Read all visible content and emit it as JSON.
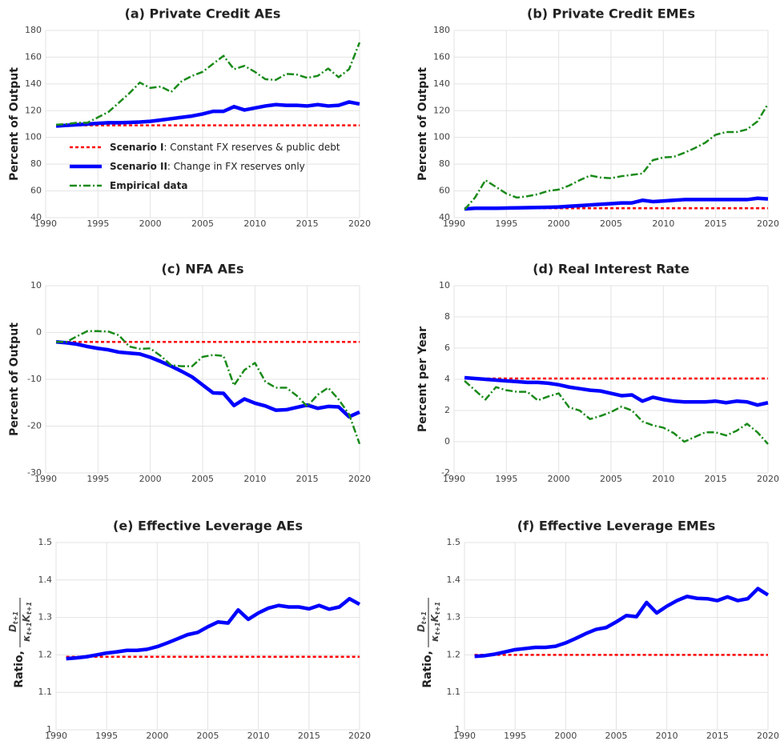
{
  "chart_data": [
    {
      "type": "line",
      "title": "(a) Private Credit AEs",
      "ylabel": "Percent of Output",
      "xlim": [
        1990,
        2020
      ],
      "xticks": [
        1990,
        1995,
        2000,
        2005,
        2010,
        2015,
        2020
      ],
      "ylim": [
        40,
        180
      ],
      "yticks": [
        40,
        60,
        80,
        100,
        120,
        140,
        160,
        180
      ],
      "grid": true,
      "legend": "lower left",
      "x": [
        1991,
        1992,
        1993,
        1994,
        1995,
        1996,
        1997,
        1998,
        1999,
        2000,
        2001,
        2002,
        2003,
        2004,
        2005,
        2006,
        2007,
        2008,
        2009,
        2010,
        2011,
        2012,
        2013,
        2014,
        2015,
        2016,
        2017,
        2018,
        2019,
        2020
      ],
      "series": [
        {
          "name": "Scenario I",
          "name_suffix": ": Constant FX reserves & public debt",
          "color": "#ff0000",
          "line_style": "dashed",
          "values": [
            109,
            109,
            109,
            109,
            109,
            109,
            109,
            109,
            109,
            109,
            109,
            109,
            109,
            109,
            109,
            109,
            109,
            109,
            109,
            109,
            109,
            109,
            109,
            109,
            109,
            109,
            109,
            109,
            109,
            109
          ]
        },
        {
          "name": "Scenario II",
          "name_suffix": ": Change in FX reserves only",
          "color": "#0000ff",
          "line_style": "solid",
          "values": [
            108.5,
            109,
            109.5,
            110,
            110.5,
            111,
            111,
            111.2,
            111.5,
            112,
            113,
            114,
            115,
            116,
            117.5,
            119.5,
            119.5,
            123,
            120.5,
            122,
            123.5,
            124.5,
            124,
            124,
            123.5,
            124.5,
            123.5,
            124,
            126.5,
            125
          ]
        },
        {
          "name": "Empirical data",
          "color": "#1a8a1a",
          "line_style": "dashdot",
          "values": [
            109.5,
            110,
            111,
            111,
            115,
            119,
            126,
            133,
            141,
            137,
            138,
            134,
            142,
            146,
            149,
            155,
            161,
            151,
            153.5,
            149,
            143.5,
            143,
            147.5,
            147,
            144.5,
            146,
            151.5,
            145,
            151,
            171
          ]
        }
      ]
    },
    {
      "type": "line",
      "title": "(b) Private Credit EMEs",
      "ylabel": "Percent of Output",
      "xlim": [
        1990,
        2020
      ],
      "xticks": [
        1990,
        1995,
        2000,
        2005,
        2010,
        2015,
        2020
      ],
      "ylim": [
        40,
        180
      ],
      "yticks": [
        40,
        60,
        80,
        100,
        120,
        140,
        160,
        180
      ],
      "grid": true,
      "x": [
        1991,
        1992,
        1993,
        1994,
        1995,
        1996,
        1997,
        1998,
        1999,
        2000,
        2001,
        2002,
        2003,
        2004,
        2005,
        2006,
        2007,
        2008,
        2009,
        2010,
        2011,
        2012,
        2013,
        2014,
        2015,
        2016,
        2017,
        2018,
        2019,
        2020
      ],
      "series": [
        {
          "color": "#ff0000",
          "line_style": "dashed",
          "values": [
            47,
            47,
            47,
            47,
            47,
            47,
            47,
            47,
            47,
            47,
            47,
            47,
            47,
            47,
            47,
            47,
            47,
            47,
            47,
            47,
            47,
            47,
            47,
            47,
            47,
            47,
            47,
            47,
            47,
            47
          ]
        },
        {
          "color": "#0000ff",
          "line_style": "solid",
          "values": [
            46.5,
            47,
            47,
            47,
            47.2,
            47.3,
            47.5,
            47.6,
            47.8,
            48,
            48.5,
            49,
            49.5,
            50,
            50.5,
            51,
            51,
            53,
            52,
            52.5,
            53,
            53.5,
            53.5,
            53.5,
            53.5,
            53.5,
            53.5,
            53.5,
            54.5,
            54
          ]
        },
        {
          "color": "#1a8a1a",
          "line_style": "dashdot",
          "values": [
            46,
            55,
            68,
            63,
            58,
            55,
            56,
            57.5,
            60,
            61,
            64,
            68,
            71.5,
            70,
            69.5,
            71,
            72,
            73,
            83,
            85,
            85.5,
            88.5,
            92,
            96,
            102,
            104,
            104,
            106,
            112,
            125
          ]
        }
      ]
    },
    {
      "type": "line",
      "title": "(c) NFA AEs",
      "ylabel": "Percent of Output",
      "xlim": [
        1990,
        2020
      ],
      "xticks": [
        1990,
        1995,
        2000,
        2005,
        2010,
        2015,
        2020
      ],
      "ylim": [
        -30,
        10
      ],
      "yticks": [
        -30,
        -20,
        -10,
        0,
        10
      ],
      "grid": true,
      "x": [
        1991,
        1992,
        1993,
        1994,
        1995,
        1996,
        1997,
        1998,
        1999,
        2000,
        2001,
        2002,
        2003,
        2004,
        2005,
        2006,
        2007,
        2008,
        2009,
        2010,
        2011,
        2012,
        2013,
        2014,
        2015,
        2016,
        2017,
        2018,
        2019,
        2020
      ],
      "series": [
        {
          "color": "#ff0000",
          "line_style": "dashed",
          "values": [
            -2,
            -2,
            -2,
            -2,
            -2,
            -2,
            -2,
            -2,
            -2,
            -2,
            -2,
            -2,
            -2,
            -2,
            -2,
            -2,
            -2,
            -2,
            -2,
            -2,
            -2,
            -2,
            -2,
            -2,
            -2,
            -2,
            -2,
            -2,
            -2,
            -2
          ]
        },
        {
          "color": "#0000ff",
          "line_style": "solid",
          "values": [
            -2,
            -2.2,
            -2.5,
            -3,
            -3.4,
            -3.7,
            -4.2,
            -4.4,
            -4.6,
            -5.3,
            -6.2,
            -7.2,
            -8.3,
            -9.5,
            -11.2,
            -12.9,
            -13,
            -15.6,
            -14.2,
            -15.1,
            -15.7,
            -16.6,
            -16.5,
            -16,
            -15.5,
            -16.2,
            -15.8,
            -15.9,
            -18,
            -17
          ]
        },
        {
          "color": "#1a8a1a",
          "line_style": "dashdot",
          "values": [
            -2,
            -2,
            -0.8,
            0.3,
            0.3,
            0.2,
            -0.6,
            -3,
            -3.5,
            -3.4,
            -5,
            -7,
            -7.2,
            -7.2,
            -5.2,
            -4.8,
            -5,
            -11.3,
            -8,
            -6.5,
            -10.5,
            -11.8,
            -11.8,
            -13.5,
            -15.8,
            -13.3,
            -11.8,
            -14.3,
            -17.5,
            -23.8
          ]
        }
      ]
    },
    {
      "type": "line",
      "title": "(d) Real Interest Rate",
      "ylabel": "Percent per Year",
      "xlim": [
        1990,
        2020
      ],
      "xticks": [
        1990,
        1995,
        2000,
        2005,
        2010,
        2015,
        2020
      ],
      "ylim": [
        -2,
        10
      ],
      "yticks": [
        -2,
        0,
        2,
        4,
        6,
        8,
        10
      ],
      "grid": true,
      "x": [
        1991,
        1992,
        1993,
        1994,
        1995,
        1996,
        1997,
        1998,
        1999,
        2000,
        2001,
        2002,
        2003,
        2004,
        2005,
        2006,
        2007,
        2008,
        2009,
        2010,
        2011,
        2012,
        2013,
        2014,
        2015,
        2016,
        2017,
        2018,
        2019,
        2020
      ],
      "series": [
        {
          "color": "#ff0000",
          "line_style": "dashed",
          "values": [
            4.05,
            4.05,
            4.05,
            4.05,
            4.05,
            4.05,
            4.05,
            4.05,
            4.05,
            4.05,
            4.05,
            4.05,
            4.05,
            4.05,
            4.05,
            4.05,
            4.05,
            4.05,
            4.05,
            4.05,
            4.05,
            4.05,
            4.05,
            4.05,
            4.05,
            4.05,
            4.05,
            4.05,
            4.05,
            4.05
          ]
        },
        {
          "color": "#0000ff",
          "line_style": "solid",
          "values": [
            4.1,
            4.05,
            4.0,
            3.95,
            3.9,
            3.85,
            3.8,
            3.8,
            3.75,
            3.65,
            3.5,
            3.4,
            3.3,
            3.25,
            3.1,
            2.95,
            3.0,
            2.6,
            2.85,
            2.7,
            2.6,
            2.55,
            2.55,
            2.55,
            2.6,
            2.5,
            2.6,
            2.55,
            2.35,
            2.5
          ]
        },
        {
          "color": "#1a8a1a",
          "line_style": "dashdot",
          "values": [
            3.9,
            3.3,
            2.7,
            3.5,
            3.3,
            3.2,
            3.2,
            2.65,
            2.9,
            3.1,
            2.2,
            2.0,
            1.45,
            1.65,
            1.9,
            2.25,
            2.0,
            1.3,
            1.05,
            0.9,
            0.55,
            0.0,
            0.3,
            0.6,
            0.6,
            0.4,
            0.7,
            1.15,
            0.6,
            -0.15
          ]
        }
      ]
    },
    {
      "type": "line",
      "title": "(e) Effective Leverage AEs",
      "ylabel": "Ratio,",
      "ylabel_fraction": {
        "numerator": [
          "D",
          "t+1"
        ],
        "denominator": [
          "κ",
          "t+1",
          "K",
          "t+1"
        ]
      },
      "xlim": [
        1990,
        2020
      ],
      "xticks": [
        1990,
        1995,
        2000,
        2005,
        2010,
        2015,
        2020
      ],
      "ylim": [
        1,
        1.5
      ],
      "yticks": [
        1,
        1.1,
        1.2,
        1.3,
        1.4,
        1.5
      ],
      "grid": true,
      "x": [
        1991,
        1992,
        1993,
        1994,
        1995,
        1996,
        1997,
        1998,
        1999,
        2000,
        2001,
        2002,
        2003,
        2004,
        2005,
        2006,
        2007,
        2008,
        2009,
        2010,
        2011,
        2012,
        2013,
        2014,
        2015,
        2016,
        2017,
        2018,
        2019,
        2020
      ],
      "series": [
        {
          "color": "#ff0000",
          "line_style": "dashed",
          "values": [
            1.195,
            1.195,
            1.195,
            1.195,
            1.195,
            1.195,
            1.195,
            1.195,
            1.195,
            1.195,
            1.195,
            1.195,
            1.195,
            1.195,
            1.195,
            1.195,
            1.195,
            1.195,
            1.195,
            1.195,
            1.195,
            1.195,
            1.195,
            1.195,
            1.195,
            1.195,
            1.195,
            1.195,
            1.195,
            1.195
          ]
        },
        {
          "color": "#0000ff",
          "line_style": "solid",
          "values": [
            1.19,
            1.192,
            1.195,
            1.2,
            1.205,
            1.208,
            1.212,
            1.212,
            1.215,
            1.222,
            1.232,
            1.243,
            1.254,
            1.26,
            1.275,
            1.288,
            1.285,
            1.32,
            1.295,
            1.312,
            1.325,
            1.332,
            1.328,
            1.328,
            1.323,
            1.332,
            1.322,
            1.328,
            1.35,
            1.335
          ]
        }
      ]
    },
    {
      "type": "line",
      "title": "(f) Effective Leverage EMEs",
      "ylabel": "Ratio,",
      "ylabel_fraction": {
        "numerator": [
          "D",
          "t+1"
        ],
        "denominator": [
          "κ",
          "t+1",
          "K",
          "t+1"
        ]
      },
      "xlim": [
        1990,
        2020
      ],
      "xticks": [
        1990,
        1995,
        2000,
        2005,
        2010,
        2015,
        2020
      ],
      "ylim": [
        1,
        1.5
      ],
      "yticks": [
        1,
        1.1,
        1.2,
        1.3,
        1.4,
        1.5
      ],
      "grid": true,
      "x": [
        1991,
        1992,
        1993,
        1994,
        1995,
        1996,
        1997,
        1998,
        1999,
        2000,
        2001,
        2002,
        2003,
        2004,
        2005,
        2006,
        2007,
        2008,
        2009,
        2010,
        2011,
        2012,
        2013,
        2014,
        2015,
        2016,
        2017,
        2018,
        2019,
        2020
      ],
      "series": [
        {
          "color": "#ff0000",
          "line_style": "dashed",
          "values": [
            1.2,
            1.2,
            1.2,
            1.2,
            1.2,
            1.2,
            1.2,
            1.2,
            1.2,
            1.2,
            1.2,
            1.2,
            1.2,
            1.2,
            1.2,
            1.2,
            1.2,
            1.2,
            1.2,
            1.2,
            1.2,
            1.2,
            1.2,
            1.2,
            1.2,
            1.2,
            1.2,
            1.2,
            1.2,
            1.2
          ]
        },
        {
          "color": "#0000ff",
          "line_style": "solid",
          "values": [
            1.196,
            1.198,
            1.202,
            1.208,
            1.214,
            1.217,
            1.22,
            1.22,
            1.223,
            1.232,
            1.244,
            1.257,
            1.268,
            1.273,
            1.288,
            1.305,
            1.302,
            1.34,
            1.312,
            1.33,
            1.345,
            1.356,
            1.351,
            1.35,
            1.345,
            1.355,
            1.345,
            1.35,
            1.377,
            1.36
          ]
        }
      ]
    }
  ]
}
